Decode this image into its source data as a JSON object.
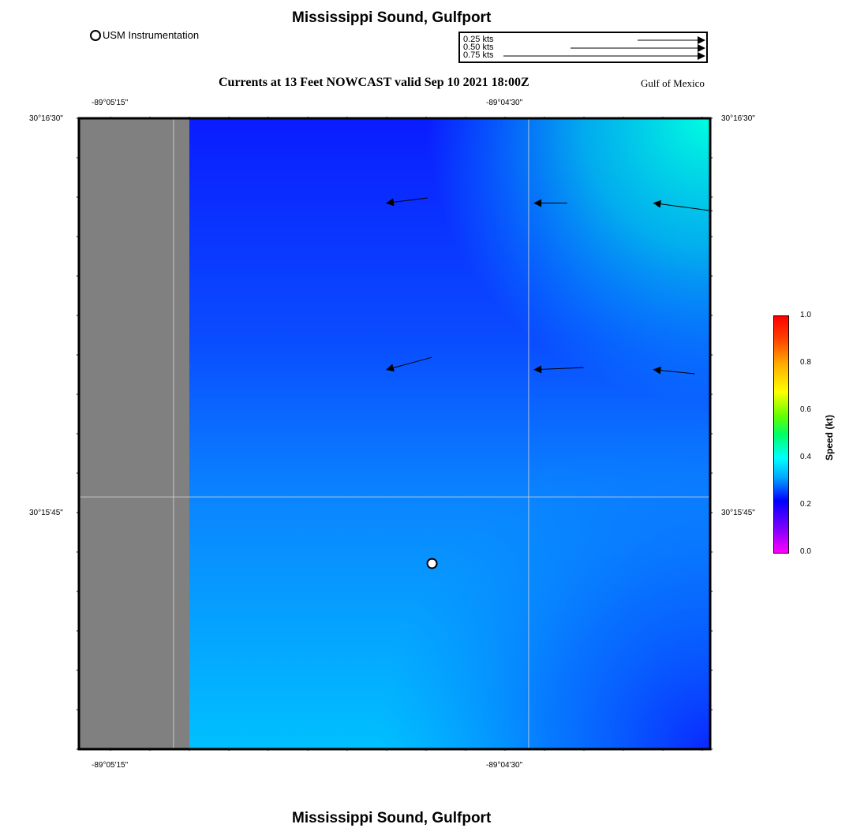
{
  "header": {
    "title": "Mississippi Sound, Gulfport",
    "subtitle": "Currents at 13 Feet NOWCAST valid Sep 10 2021 18:00Z",
    "region_label": "Gulf of Mexico",
    "footer_title": "Mississippi Sound, Gulfport"
  },
  "marker_legend": {
    "label": "USM Instrumentation"
  },
  "vector_legend": {
    "rows": [
      {
        "label": "0.25 kts",
        "speed": 0.25
      },
      {
        "label": "0.50 kts",
        "speed": 0.5
      },
      {
        "label": "0.75 kts",
        "speed": 0.75
      }
    ]
  },
  "axes": {
    "lon_top": [
      "-89°05'15\"",
      "-89°04'30\""
    ],
    "lon_bottom": [
      "-89°05'15\"",
      "-89°04'30\""
    ],
    "lat_left": [
      "30°16'30\"",
      "30°15'45\""
    ],
    "lat_right": [
      "30°16'30\"",
      "30°15'45\""
    ]
  },
  "colorbar": {
    "title": "Speed (kt)",
    "ticks": [
      "1.0",
      "0.8",
      "0.6",
      "0.4",
      "0.2",
      "0.0"
    ],
    "min": 0.0,
    "max": 1.0
  },
  "map": {
    "land_color": "#808080",
    "grid_color": "#d8d8d8",
    "usm_station": {
      "lon": -89.0784,
      "lat": 30.2603
    },
    "current_vectors": [
      {
        "lon": -89.08,
        "lat": 30.2722,
        "u": -0.2,
        "v": -0.025
      },
      {
        "lon": -89.0748,
        "lat": 30.2722,
        "u": -0.16,
        "v": 0.0
      },
      {
        "lon": -89.0706,
        "lat": 30.2722,
        "u": -0.3,
        "v": 0.04
      },
      {
        "lon": -89.08,
        "lat": 30.2667,
        "u": -0.22,
        "v": -0.06
      },
      {
        "lon": -89.0748,
        "lat": 30.2667,
        "u": -0.24,
        "v": -0.01
      },
      {
        "lon": -89.0706,
        "lat": 30.2667,
        "u": -0.2,
        "v": 0.02
      }
    ]
  }
}
